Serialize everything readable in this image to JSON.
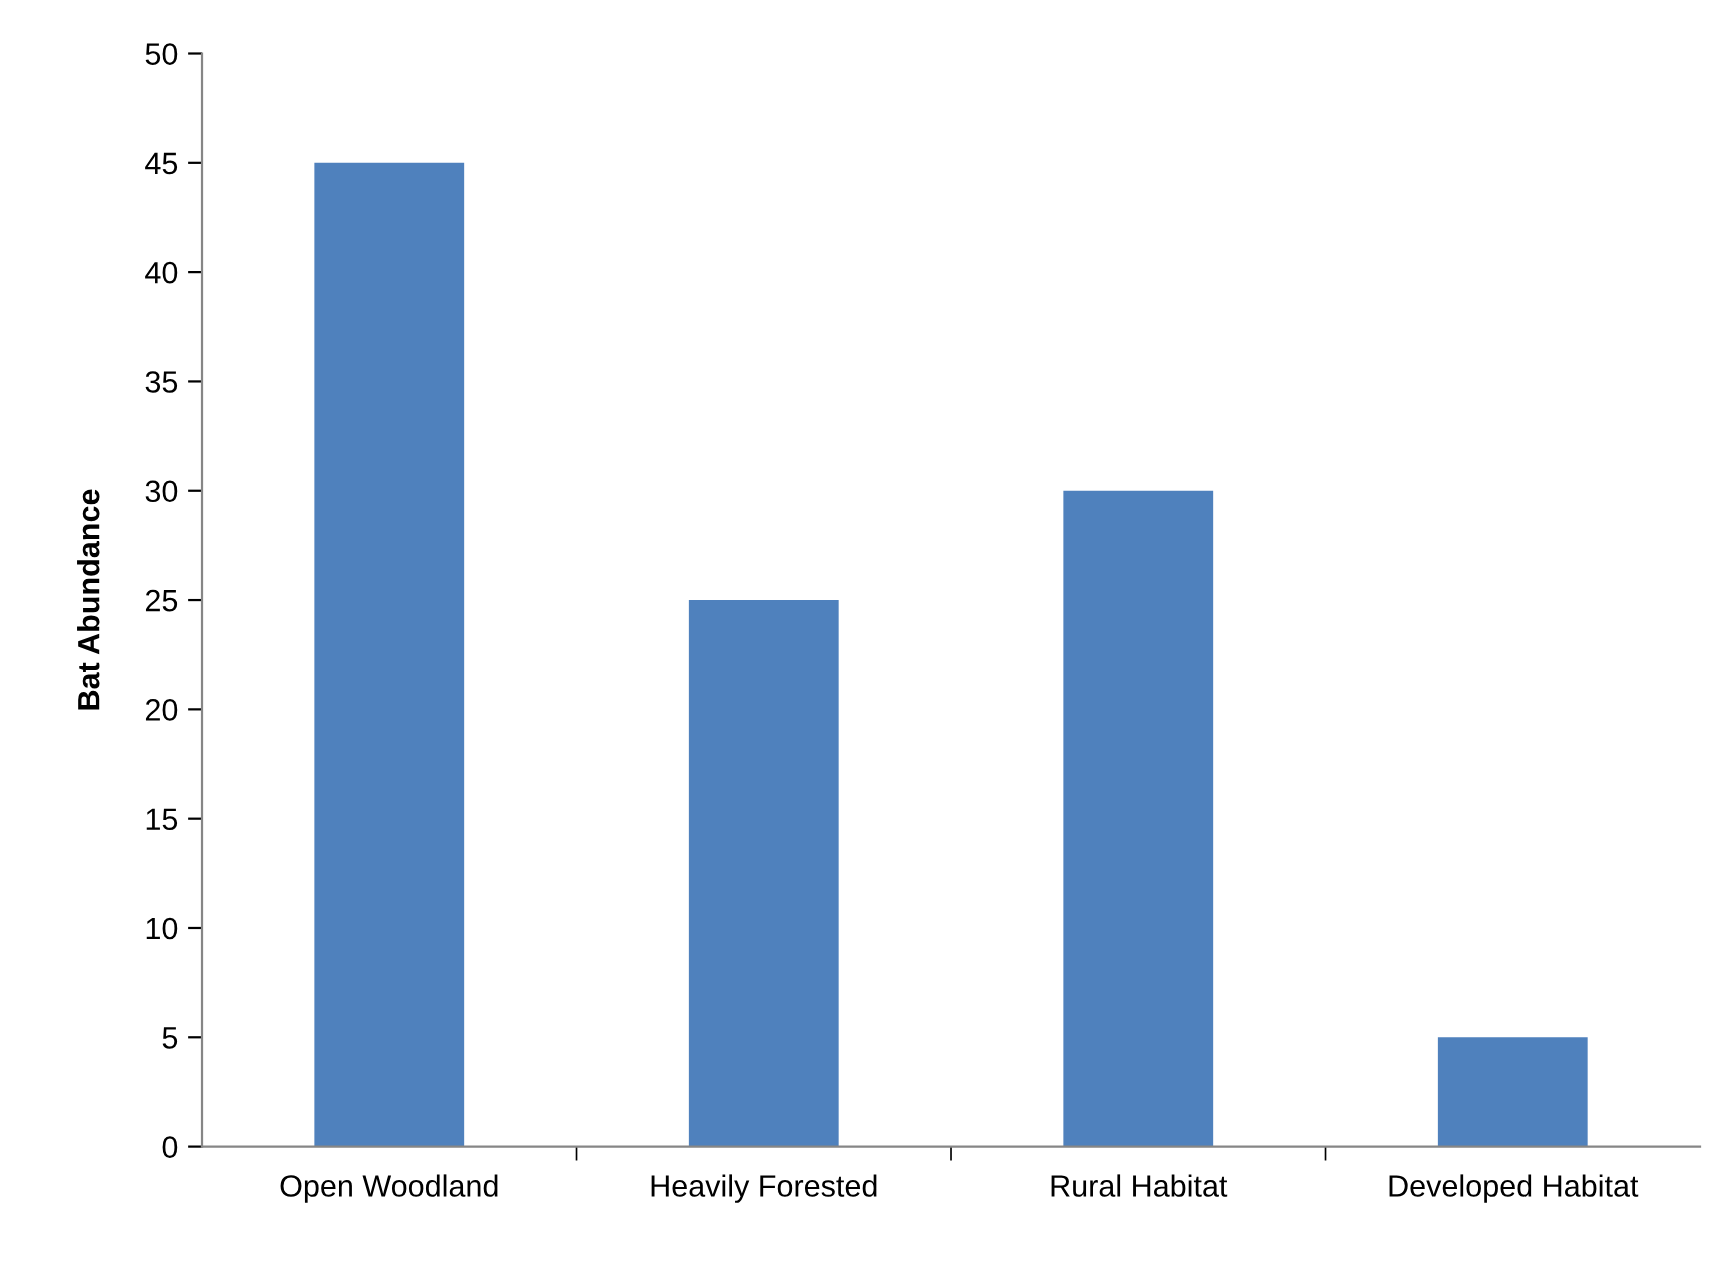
{
  "chart_data": {
    "type": "bar",
    "ylabel": "Bat Abundance",
    "categories": [
      "Open Woodland",
      "Heavily Forested",
      "Rural Habitat",
      "Developed Habitat"
    ],
    "values": [
      45,
      25,
      30,
      5
    ],
    "color": "#4f81bd",
    "ylim": [
      0,
      50
    ],
    "yticks": [
      0,
      5,
      10,
      15,
      20,
      25,
      30,
      35,
      40,
      45,
      50
    ],
    "grid": false,
    "legend": false
  }
}
